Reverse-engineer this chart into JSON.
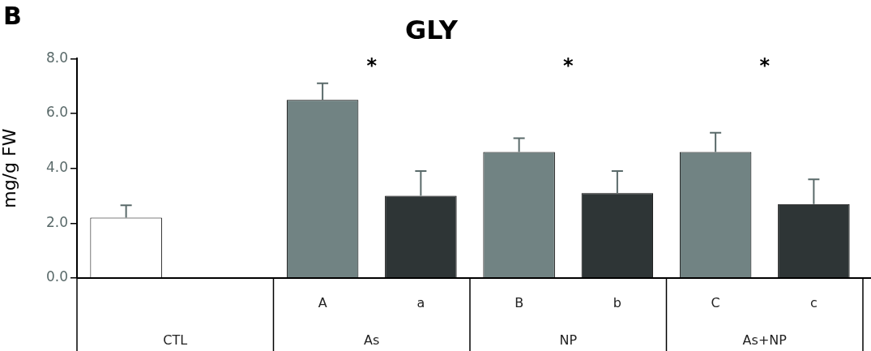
{
  "chart_data": {
    "type": "bar",
    "title": "GLY",
    "ylabel": "mg/g FW",
    "categories": [
      null,
      null,
      "A",
      "a",
      "B",
      "b",
      "C",
      "c"
    ],
    "values": [
      2.2,
      null,
      6.5,
      3.0,
      4.6,
      3.1,
      4.6,
      2.7
    ],
    "colors": [
      "#ffffff",
      "#ffffff",
      "#718383",
      "#2e3536",
      "#718383",
      "#2e3536",
      "#718383",
      "#2e3536"
    ],
    "errors": [
      0.45,
      null,
      0.6,
      0.9,
      0.5,
      0.8,
      0.7,
      0.9
    ],
    "ylim": [
      0,
      8
    ],
    "yticks": [
      {
        "value": 0,
        "label": "0.0"
      },
      {
        "value": 2,
        "label": "2.0"
      },
      {
        "value": 4,
        "label": "4.0"
      },
      {
        "value": 6,
        "label": "6.0"
      },
      {
        "value": 8,
        "label": "8.0"
      }
    ],
    "grid": false,
    "legend": false,
    "annotations": [
      "B",
      "CTL",
      "As",
      "NP",
      "As+NP",
      "*",
      "*",
      "*"
    ]
  }
}
